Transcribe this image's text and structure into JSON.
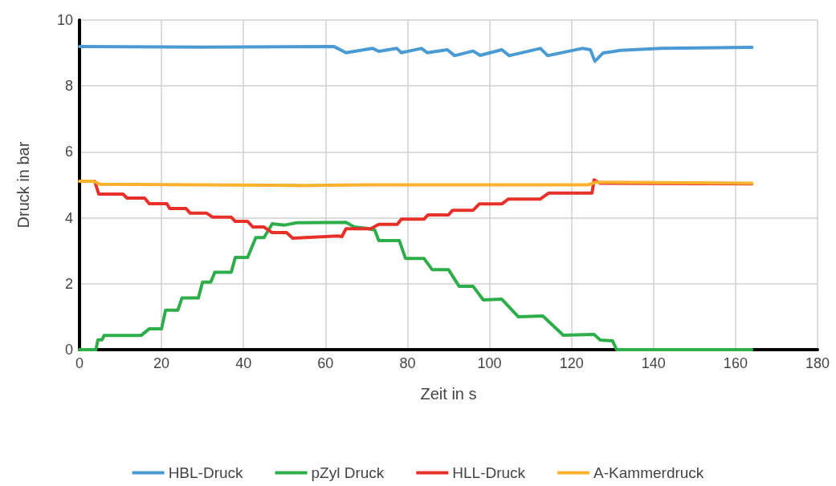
{
  "chart_data": {
    "type": "line",
    "xlabel": "Zeit in s",
    "ylabel": "Druck in bar",
    "xlim": [
      0,
      180
    ],
    "xticks": [
      0,
      20,
      40,
      60,
      80,
      100,
      120,
      140,
      160,
      180
    ],
    "ylim": [
      0,
      10
    ],
    "yticks": [
      0,
      2,
      4,
      6,
      8,
      10
    ],
    "grid": true,
    "legend": "bottom",
    "marker": "none",
    "line_style": "solid",
    "series": [
      {
        "name": "HBL-Druck",
        "color": "#4a9ad4",
        "x": [
          0,
          30,
          62,
          65,
          71.5,
          73,
          77.4,
          78.5,
          83.4,
          84.8,
          89.7,
          91.5,
          96,
          97.7,
          103,
          104.8,
          112.4,
          114.2,
          122.6,
          124.6,
          125.7,
          127.7,
          132,
          142,
          164
        ],
        "values": [
          9.2,
          9.18,
          9.2,
          9.01,
          9.14,
          9.05,
          9.14,
          9.01,
          9.14,
          9.01,
          9.1,
          8.92,
          9.06,
          8.93,
          9.1,
          8.92,
          9.14,
          8.92,
          9.14,
          9.1,
          8.75,
          9.0,
          9.08,
          9.14,
          9.17
        ]
      },
      {
        "name": "pZyl Druck",
        "color": "#2eae4a",
        "x": [
          0,
          4,
          4.5,
          5.5,
          6,
          15,
          17,
          20,
          21,
          24,
          25,
          29,
          30,
          32,
          33,
          37,
          38,
          41,
          43,
          45,
          47,
          50,
          53,
          65,
          67,
          70,
          72,
          73,
          78,
          79.5,
          84,
          86,
          90,
          92.6,
          96,
          98.5,
          103,
          107,
          113,
          118,
          125.5,
          127,
          130,
          131,
          164
        ],
        "values": [
          0,
          0,
          0.3,
          0.3,
          0.43,
          0.43,
          0.63,
          0.63,
          1.2,
          1.2,
          1.57,
          1.57,
          2.05,
          2.05,
          2.35,
          2.35,
          2.8,
          2.8,
          3.4,
          3.4,
          3.82,
          3.78,
          3.85,
          3.86,
          3.72,
          3.68,
          3.63,
          3.31,
          3.31,
          2.77,
          2.77,
          2.43,
          2.43,
          1.92,
          1.92,
          1.51,
          1.53,
          1.0,
          1.02,
          0.44,
          0.46,
          0.29,
          0.27,
          0,
          0
        ]
      },
      {
        "name": "HLL-Druck",
        "color": "#e8302a",
        "x": [
          0,
          3.7,
          4.7,
          10.6,
          11.6,
          15.9,
          17,
          21.3,
          22,
          26,
          27,
          31,
          32.5,
          37,
          38,
          41,
          42.3,
          45,
          47,
          50.5,
          52,
          63,
          64,
          65,
          71,
          73,
          77.5,
          78.5,
          84,
          85,
          90,
          91,
          96,
          97.5,
          103,
          104.6,
          112.4,
          114.4,
          125,
          125.5,
          127,
          164
        ],
        "values": [
          5.11,
          5.11,
          4.72,
          4.72,
          4.6,
          4.6,
          4.43,
          4.43,
          4.28,
          4.28,
          4.14,
          4.14,
          4.02,
          4.02,
          3.89,
          3.89,
          3.72,
          3.72,
          3.55,
          3.55,
          3.38,
          3.45,
          3.43,
          3.67,
          3.67,
          3.8,
          3.8,
          3.96,
          3.96,
          4.09,
          4.09,
          4.23,
          4.23,
          4.42,
          4.42,
          4.57,
          4.57,
          4.75,
          4.75,
          5.15,
          5.05,
          5.03
        ]
      },
      {
        "name": "A-Kammerdruck",
        "color": "#fbb12e",
        "x": [
          0,
          3.5,
          5,
          30,
          55,
          70,
          110,
          124,
          126,
          164
        ],
        "values": [
          5.11,
          5.11,
          5.02,
          5.0,
          4.98,
          5.0,
          5.0,
          5.0,
          5.08,
          5.05
        ]
      }
    ]
  }
}
